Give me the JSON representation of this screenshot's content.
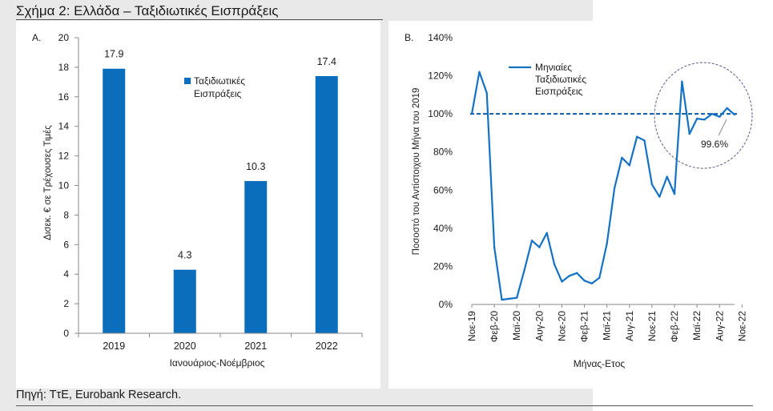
{
  "figure_title": "Σχήμα 2: Ελλάδα – Ταξιδιωτικές Εισπράξεις",
  "source": "Πηγή: ΤτΕ, Eurobank Research.",
  "colors": {
    "bar": "#0a6ebd",
    "line": "#1471c4",
    "dashed": "#0a5aa8",
    "circle": "#5a5a8a"
  },
  "chart_data": [
    {
      "panel_label": "A.",
      "type": "bar",
      "categories": [
        "2019",
        "2020",
        "2021",
        "2022"
      ],
      "values": [
        17.9,
        4.3,
        10.3,
        17.4
      ],
      "value_labels": [
        "17.9",
        "4.3",
        "10.3",
        "17.4"
      ],
      "ylabel": "Δισεκ. € σε Τρέχουσες Τιμές",
      "xlabel": "Ιανουάριος-Νοέμβριος",
      "ylim": [
        0,
        20
      ],
      "yticks": [
        "0",
        "2",
        "4",
        "6",
        "8",
        "10",
        "12",
        "14",
        "16",
        "18",
        "20"
      ],
      "legend": [
        "Ταξιδιωτικές",
        "Εισπράξεις"
      ]
    },
    {
      "panel_label": "B.",
      "type": "line",
      "ylabel": "Ποσοστό του Αντίστοιχου Μήνα του 2019",
      "xlabel": "Μήνας-Ετος",
      "ylim": [
        0,
        140
      ],
      "yticks": [
        "0%",
        "20%",
        "40%",
        "60%",
        "80%",
        "100%",
        "120%",
        "140%"
      ],
      "xticks": [
        "Νοε-19",
        "Φεβ-20",
        "Μαϊ-20",
        "Αυγ-20",
        "Νοε-20",
        "Φεβ-21",
        "Μαϊ-21",
        "Αυγ-21",
        "Νοε-21",
        "Φεβ-22",
        "Μαϊ-22",
        "Αυγ-22",
        "Νοε-22"
      ],
      "series": [
        {
          "name": "Μηνιαίες Ταξιδιωτικές Εισπράξεις",
          "values": [
            100,
            122,
            111,
            30,
            2.5,
            3,
            3.5,
            18,
            33.5,
            30,
            37.5,
            21,
            12,
            15,
            16.5,
            12.5,
            11,
            14,
            32,
            61,
            77,
            73,
            88,
            86,
            63,
            56.5,
            67,
            58,
            117,
            89.5,
            97.5,
            97,
            100,
            98.5,
            103,
            99.6
          ]
        }
      ],
      "reference_line": 100,
      "legend": [
        "Μηνιαίες",
        "Ταξιδιωτικές",
        "Εισπράξεις"
      ],
      "annotation": "99.6%"
    }
  ]
}
